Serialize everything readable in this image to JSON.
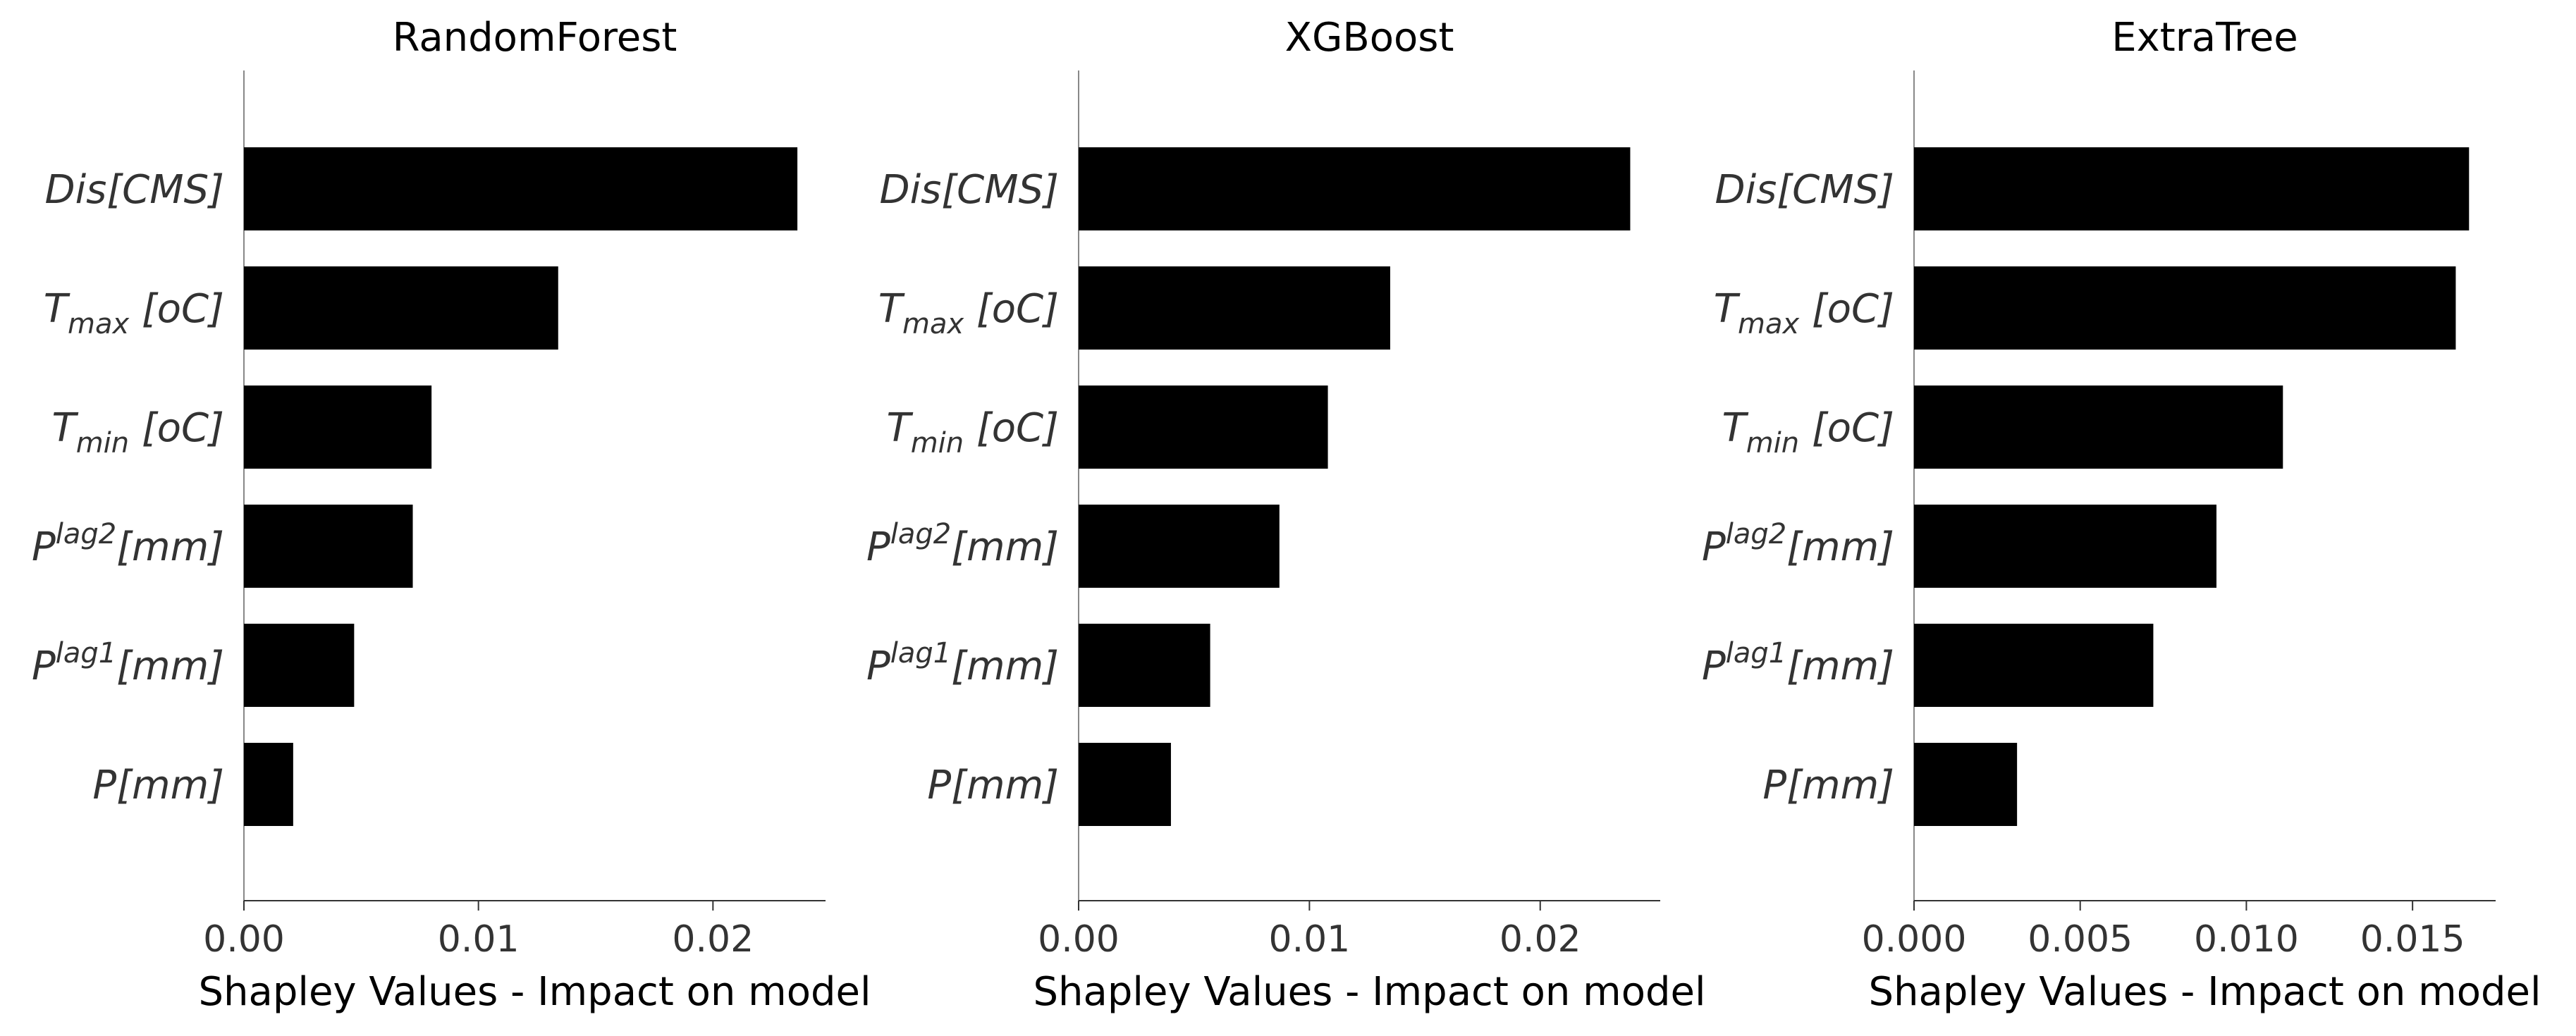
{
  "chart_data": [
    {
      "type": "bar",
      "orientation": "horizontal",
      "title": "RandomForest",
      "xlabel": "Shapley Values - Impact on model",
      "categories": [
        {
          "id": "dis",
          "base": "Dis",
          "sub": "",
          "sup": "",
          "unit": "[CMS]"
        },
        {
          "id": "tmax",
          "base": "T",
          "sub": "max",
          "sup": "",
          "unit": " [oC]"
        },
        {
          "id": "tmin",
          "base": "T",
          "sub": "min",
          "sup": "",
          "unit": " [oC]"
        },
        {
          "id": "plag2",
          "base": "P",
          "sub": "",
          "sup": "lag2",
          "unit": "[mm]"
        },
        {
          "id": "plag1",
          "base": "P",
          "sub": "",
          "sup": "lag1",
          "unit": "[mm]"
        },
        {
          "id": "p",
          "base": "P",
          "sub": "",
          "sup": "",
          "unit": "[mm]"
        }
      ],
      "values": [
        0.0236,
        0.0134,
        0.008,
        0.0072,
        0.0047,
        0.0021
      ],
      "xlim": [
        0,
        0.0248
      ],
      "xticks": [
        0,
        0.01,
        0.02
      ],
      "xtick_labels": [
        "0.00",
        "0.01",
        "0.02"
      ],
      "color": "#000000"
    },
    {
      "type": "bar",
      "orientation": "horizontal",
      "title": "XGBoost",
      "xlabel": "Shapley Values - Impact on model",
      "categories": [
        {
          "id": "dis",
          "base": "Dis",
          "sub": "",
          "sup": "",
          "unit": "[CMS]"
        },
        {
          "id": "tmax",
          "base": "T",
          "sub": "max",
          "sup": "",
          "unit": " [oC]"
        },
        {
          "id": "tmin",
          "base": "T",
          "sub": "min",
          "sup": "",
          "unit": " [oC]"
        },
        {
          "id": "plag2",
          "base": "P",
          "sub": "",
          "sup": "lag2",
          "unit": "[mm]"
        },
        {
          "id": "plag1",
          "base": "P",
          "sub": "",
          "sup": "lag1",
          "unit": "[mm]"
        },
        {
          "id": "p",
          "base": "P",
          "sub": "",
          "sup": "",
          "unit": "[mm]"
        }
      ],
      "values": [
        0.0239,
        0.0135,
        0.0108,
        0.0087,
        0.0057,
        0.004
      ],
      "xlim": [
        0,
        0.0252
      ],
      "xticks": [
        0,
        0.01,
        0.02
      ],
      "xtick_labels": [
        "0.00",
        "0.01",
        "0.02"
      ],
      "color": "#000000"
    },
    {
      "type": "bar",
      "orientation": "horizontal",
      "title": "ExtraTree",
      "xlabel": "Shapley Values - Impact on model",
      "categories": [
        {
          "id": "dis",
          "base": "Dis",
          "sub": "",
          "sup": "",
          "unit": "[CMS]"
        },
        {
          "id": "tmax",
          "base": "T",
          "sub": "max",
          "sup": "",
          "unit": " [oC]"
        },
        {
          "id": "tmin",
          "base": "T",
          "sub": "min",
          "sup": "",
          "unit": " [oC]"
        },
        {
          "id": "plag2",
          "base": "P",
          "sub": "",
          "sup": "lag2",
          "unit": "[mm]"
        },
        {
          "id": "plag1",
          "base": "P",
          "sub": "",
          "sup": "lag1",
          "unit": "[mm]"
        },
        {
          "id": "p",
          "base": "P",
          "sub": "",
          "sup": "",
          "unit": "[mm]"
        }
      ],
      "values": [
        0.0167,
        0.0163,
        0.0111,
        0.0091,
        0.0072,
        0.0031
      ],
      "xlim": [
        0,
        0.0175
      ],
      "xticks": [
        0,
        0.005,
        0.01,
        0.015
      ],
      "xtick_labels": [
        "0.000",
        "0.005",
        "0.010",
        "0.015"
      ],
      "color": "#000000"
    }
  ]
}
